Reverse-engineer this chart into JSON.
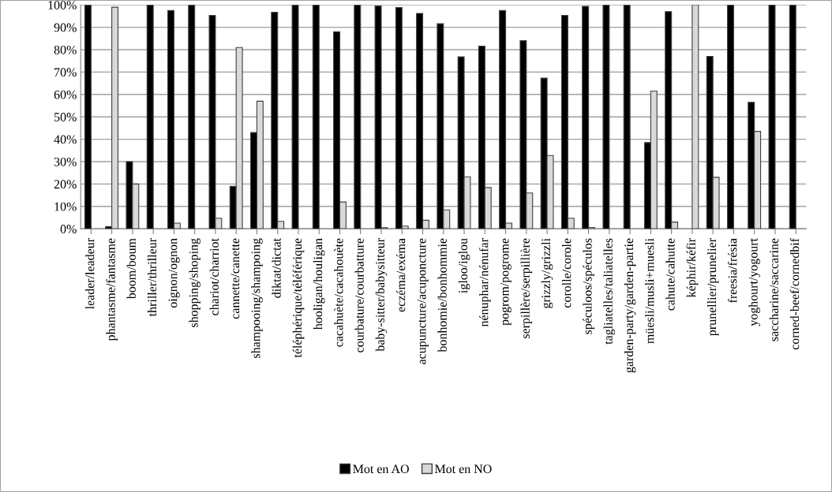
{
  "chart_data": {
    "type": "bar",
    "categories": [
      "leader/leadeur",
      "phantasme/fantasme",
      "boom/boum",
      "thriller/thrilleur",
      "oignon/ognon",
      "shopping/shoping",
      "chariot/charriot",
      "cannette/canette",
      "shampooing/shampoing",
      "diktat/dictat",
      "téléphérique/téléférique",
      "hooligan/houligan",
      "cacahuète/cacahouète",
      "courbature/courbatture",
      "baby-sitter/babysitteur",
      "eczéma/exéma",
      "acupuncture/acuponcture",
      "bonhomie/bonhommie",
      "igloo/iglou",
      "nénuphar/nénufar",
      "pogrom/pogrome",
      "serpillère/serpillière",
      "grizzly/grizzli",
      "corolle/corole",
      "spéculoos/spéculos",
      "tagliatelles/taliatelles",
      "garden-party/garden-partie",
      "müesli/musli+muesli",
      "cahute/cahutte",
      "képhir/kéfir",
      "prunellier/prunelier",
      "freesia/frésia",
      "yoghourt/yogourt",
      "saccharine/saccarine",
      "corned-beef/cornedbif"
    ],
    "series": [
      {
        "name": "Mot en AO",
        "color": "#000000",
        "values": [
          100,
          1,
          30,
          100,
          97.5,
          100,
          95.3,
          19,
          43,
          96.7,
          100,
          100,
          88,
          100,
          99.5,
          98.8,
          96.2,
          91.6,
          76.8,
          81.6,
          97.5,
          84,
          67.3,
          95.3,
          99.4,
          100,
          100,
          38.5,
          97,
          0,
          77,
          100,
          56.5,
          100,
          100
        ]
      },
      {
        "name": "Mot en NO",
        "color": "#d9d9d9",
        "values": [
          0,
          99,
          20,
          0,
          2.5,
          0,
          4.7,
          81,
          57,
          3.3,
          0,
          0,
          12,
          0,
          0.5,
          1.2,
          3.8,
          8.4,
          23.2,
          18.4,
          2.5,
          16,
          32.7,
          4.7,
          0.6,
          0,
          0,
          61.5,
          3,
          100,
          23,
          0,
          43.5,
          0,
          0
        ]
      }
    ],
    "ylim": [
      0,
      100
    ],
    "yticks": [
      {
        "value": 0,
        "label": "0%"
      },
      {
        "value": 10,
        "label": "10%"
      },
      {
        "value": 20,
        "label": "20%"
      },
      {
        "value": 30,
        "label": "30%"
      },
      {
        "value": 40,
        "label": "40%"
      },
      {
        "value": 50,
        "label": "50%"
      },
      {
        "value": 60,
        "label": "60%"
      },
      {
        "value": 70,
        "label": "70%"
      },
      {
        "value": 80,
        "label": "80%"
      },
      {
        "value": 90,
        "label": "90%"
      },
      {
        "value": 100,
        "label": "100%"
      }
    ],
    "grid": "y",
    "legend": "bottom"
  }
}
